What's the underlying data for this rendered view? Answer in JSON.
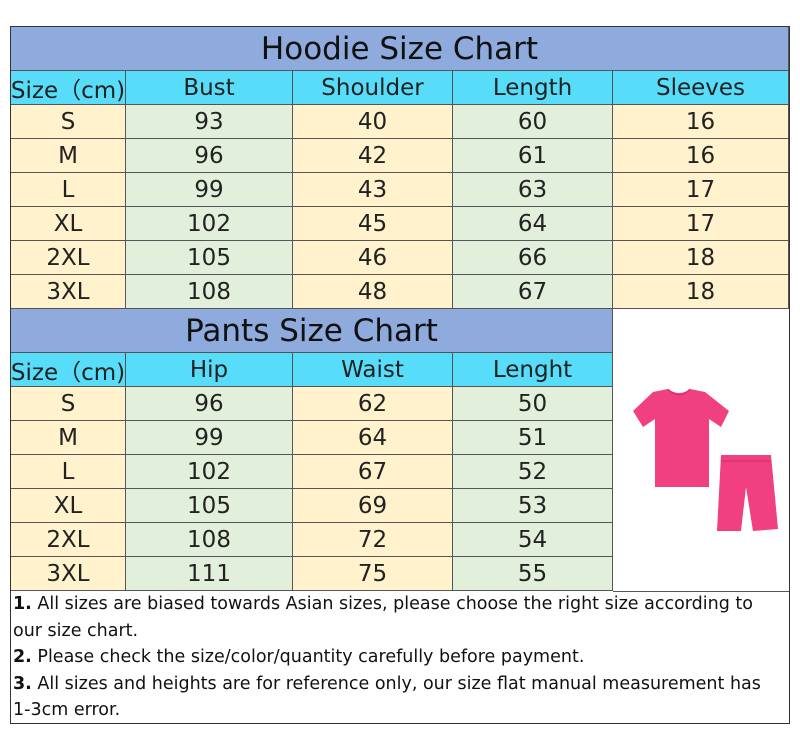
{
  "hoodie": {
    "title": "Hoodie Size Chart",
    "headers": [
      "Size（cm)",
      "Bust",
      "Shoulder",
      "Length",
      "Sleeves"
    ],
    "rows": [
      [
        "S",
        "93",
        "40",
        "60",
        "16"
      ],
      [
        "M",
        "96",
        "42",
        "61",
        "16"
      ],
      [
        "L",
        "99",
        "43",
        "63",
        "17"
      ],
      [
        "XL",
        "102",
        "45",
        "64",
        "17"
      ],
      [
        "2XL",
        "105",
        "46",
        "66",
        "18"
      ],
      [
        "3XL",
        "108",
        "48",
        "67",
        "18"
      ]
    ]
  },
  "pants": {
    "title": "Pants Size Chart",
    "headers": [
      "Size（cm)",
      "Hip",
      "Waist",
      "Lenght"
    ],
    "rows": [
      [
        "S",
        "96",
        "62",
        "50"
      ],
      [
        "M",
        "99",
        "64",
        "51"
      ],
      [
        "L",
        "102",
        "67",
        "52"
      ],
      [
        "XL",
        "105",
        "69",
        "53"
      ],
      [
        "2XL",
        "108",
        "72",
        "54"
      ],
      [
        "3XL",
        "111",
        "75",
        "55"
      ]
    ]
  },
  "product_image": {
    "description_icon": "pink-tshirt-and-shorts-set",
    "color": "#f0407f"
  },
  "notes": [
    {
      "num": "1.",
      "text": " All sizes are biased towards Asian sizes, please choose the right size according to our size chart."
    },
    {
      "num": "2.",
      "text": " Please check the size/color/quantity carefully before payment."
    },
    {
      "num": "3.",
      "text": " All sizes and heights are for reference only, our size flat manual measurement has 1-3cm error."
    }
  ],
  "colors": {
    "title_bg": "#8faadc",
    "header_bg": "#57dcf9",
    "yellow": "#fff2cc",
    "green": "#e2efda"
  }
}
